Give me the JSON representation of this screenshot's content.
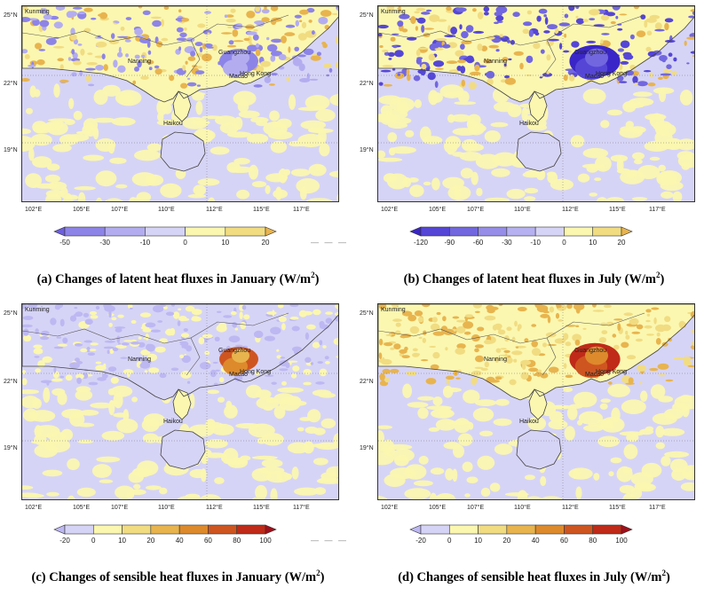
{
  "panels": [
    {
      "id": "a",
      "caption": "(a) Changes of latent heat fluxes in January (W/m",
      "caption_sup": "2",
      "caption_end": ")",
      "palette": "latent",
      "legend_ticks": [
        "-50",
        "-30",
        "-10",
        "0",
        "10",
        "20"
      ],
      "legend_colors": [
        "#6d5fe0",
        "#8d84e8",
        "#b3adf0",
        "#d6d4f6",
        "#fbf7b0",
        "#f1dc82",
        "#e8b44e"
      ],
      "has_dash_mark": true
    },
    {
      "id": "b",
      "caption": "(b) Changes of latent heat fluxes in July (W/m",
      "caption_sup": "2",
      "caption_end": ")",
      "palette": "latent-july",
      "legend_ticks": [
        "-120",
        "-90",
        "-60",
        "-30",
        "-10",
        "0",
        "10",
        "20"
      ],
      "legend_colors": [
        "#3a26c8",
        "#5546d6",
        "#7267df",
        "#958de8",
        "#b6b1f0",
        "#d6d4f6",
        "#fbf7b0",
        "#f1dc82",
        "#e8b44e"
      ],
      "has_dash_mark": false
    },
    {
      "id": "c",
      "caption": "(c) Changes of sensible heat fluxes in January (W/m",
      "caption_sup": "2",
      "caption_end": ")",
      "palette": "sensible",
      "legend_ticks": [
        "-20",
        "0",
        "10",
        "20",
        "40",
        "60",
        "80",
        "100"
      ],
      "legend_colors": [
        "#bdb8f2",
        "#d6d4f6",
        "#fbf7b0",
        "#f1dc82",
        "#e8b44e",
        "#dd8a2c",
        "#cf5520",
        "#c02a18",
        "#a0101a"
      ],
      "has_dash_mark": true
    },
    {
      "id": "d",
      "caption": "(d) Changes of sensible heat fluxes in July (W/m",
      "caption_sup": "2",
      "caption_end": ")",
      "palette": "sensible-july",
      "legend_ticks": [
        "-20",
        "0",
        "10",
        "20",
        "40",
        "60",
        "80",
        "100"
      ],
      "legend_colors": [
        "#bdb8f2",
        "#d6d4f6",
        "#fbf7b0",
        "#f1dc82",
        "#e8b44e",
        "#dd8a2c",
        "#cf5520",
        "#c02a18",
        "#a0101a"
      ],
      "has_dash_mark": false
    }
  ],
  "axes": {
    "lon_ticks": [
      "102°E",
      "105°E",
      "107°E",
      "110°E",
      "112°E",
      "115°E",
      "117°E"
    ],
    "lat_ticks": [
      "25°N",
      "22°N",
      "19°N"
    ]
  },
  "cities": {
    "kunming": "Kunming",
    "nanning": "Nanning",
    "guangzhou": "Guangzhou",
    "hongkong": "Hong Kong",
    "macao": "Macao",
    "haikou": "Haikou"
  },
  "dash_mark": "— — —"
}
